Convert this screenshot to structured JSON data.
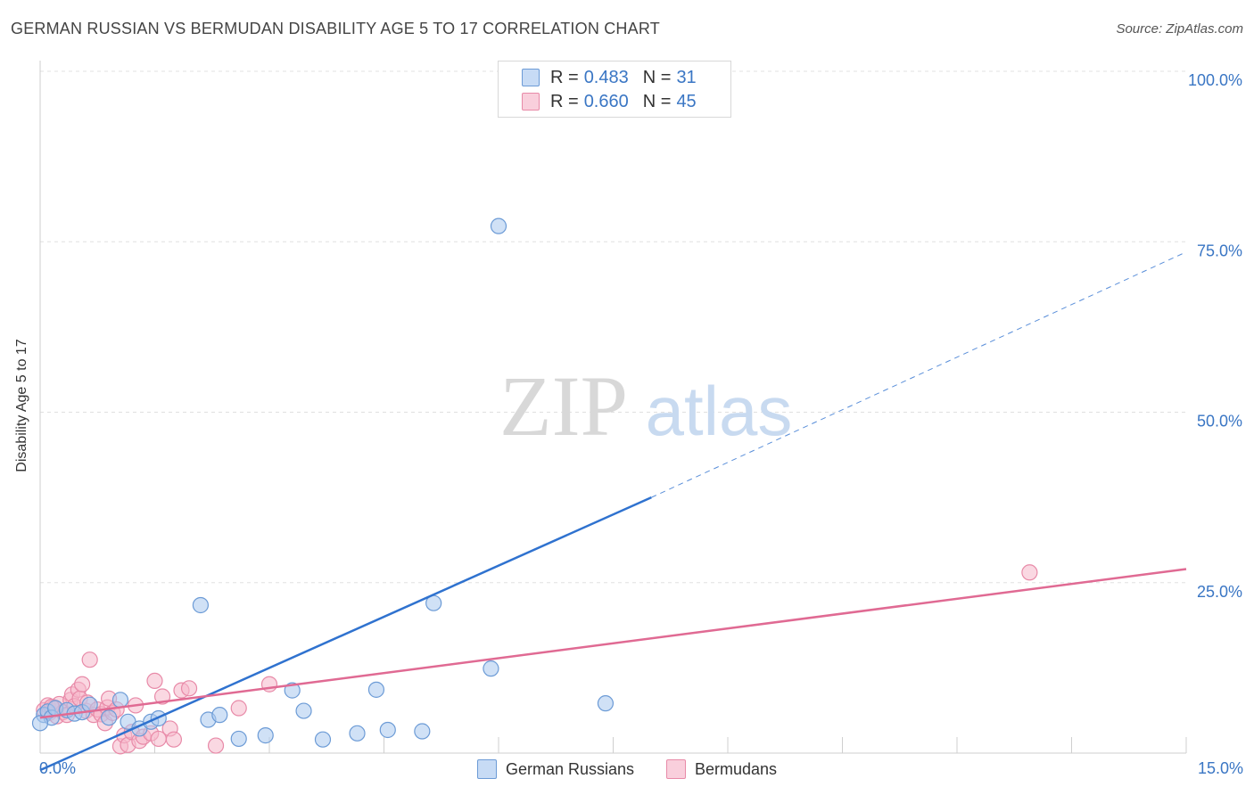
{
  "header": {
    "title": "GERMAN RUSSIAN VS BERMUDAN DISABILITY AGE 5 TO 17 CORRELATION CHART",
    "source": "Source: ZipAtlas.com"
  },
  "watermark": {
    "zip": "ZIP",
    "atlas": "atlas"
  },
  "legend_top": {
    "r_label": "R =",
    "n_label": "N =",
    "rows": [
      {
        "r": "0.483",
        "n": "31"
      },
      {
        "r": "0.660",
        "n": "45"
      }
    ]
  },
  "chart_data": {
    "type": "scatter",
    "title": "GERMAN RUSSIAN VS BERMUDAN DISABILITY AGE 5 TO 17 CORRELATION CHART",
    "xlabel": "",
    "ylabel": "Disability Age 5 to 17",
    "xlim": [
      0,
      15
    ],
    "ylim": [
      0,
      100
    ],
    "x_tick_labels": [
      "0.0%",
      "15.0%"
    ],
    "y_ticks": [
      25,
      50,
      75,
      100
    ],
    "y_tick_labels": [
      "25.0%",
      "50.0%",
      "75.0%",
      "100.0%"
    ],
    "grid": true,
    "legend_position": "bottom",
    "colors": {
      "blue_fill": "#a9c8ef",
      "blue_stroke": "#6c9bd6",
      "blue_line": "#2f72cf",
      "pink_fill": "#f6b8cb",
      "pink_stroke": "#e88aa8",
      "pink_line": "#e06a93",
      "tick_text": "#3a76c4",
      "grid": "#e0e0e0"
    },
    "series": [
      {
        "name": "German Russians",
        "r": 0.483,
        "n": 31,
        "points": [
          [
            0.05,
            5.6
          ],
          [
            0.1,
            6.1
          ],
          [
            0.15,
            5.2
          ],
          [
            0.2,
            6.6
          ],
          [
            0.35,
            6.3
          ],
          [
            0.45,
            5.8
          ],
          [
            0.55,
            6.0
          ],
          [
            0.65,
            7.1
          ],
          [
            0.9,
            5.2
          ],
          [
            1.05,
            7.8
          ],
          [
            1.15,
            4.6
          ],
          [
            1.3,
            3.6
          ],
          [
            1.45,
            4.6
          ],
          [
            1.55,
            5.1
          ],
          [
            2.1,
            21.7
          ],
          [
            2.2,
            4.9
          ],
          [
            2.35,
            5.6
          ],
          [
            2.6,
            2.1
          ],
          [
            2.95,
            2.6
          ],
          [
            3.3,
            9.2
          ],
          [
            3.45,
            6.2
          ],
          [
            3.7,
            2.0
          ],
          [
            4.15,
            2.9
          ],
          [
            4.4,
            9.3
          ],
          [
            4.55,
            3.4
          ],
          [
            5.0,
            3.2
          ],
          [
            5.15,
            22.0
          ],
          [
            5.9,
            12.4
          ],
          [
            6.0,
            77.3
          ],
          [
            7.4,
            7.3
          ],
          [
            0.0,
            4.4
          ]
        ],
        "trend": {
          "x0": 0.0,
          "y0": -2.5,
          "x1": 8.0,
          "y1": 37.5,
          "dashed_to_x": 15.0,
          "dashed_to_y": 73.5
        }
      },
      {
        "name": "Bermudans",
        "r": 0.66,
        "n": 45,
        "points": [
          [
            0.05,
            6.3
          ],
          [
            0.1,
            7.0
          ],
          [
            0.12,
            5.9
          ],
          [
            0.18,
            6.7
          ],
          [
            0.22,
            5.4
          ],
          [
            0.25,
            7.2
          ],
          [
            0.3,
            6.0
          ],
          [
            0.35,
            5.6
          ],
          [
            0.4,
            7.8
          ],
          [
            0.42,
            8.6
          ],
          [
            0.45,
            6.9
          ],
          [
            0.5,
            9.3
          ],
          [
            0.52,
            8.0
          ],
          [
            0.55,
            10.1
          ],
          [
            0.6,
            6.2
          ],
          [
            0.62,
            7.4
          ],
          [
            0.65,
            13.7
          ],
          [
            0.7,
            5.6
          ],
          [
            0.75,
            6.4
          ],
          [
            0.8,
            5.7
          ],
          [
            0.85,
            4.4
          ],
          [
            0.88,
            6.7
          ],
          [
            0.9,
            8.0
          ],
          [
            0.95,
            5.9
          ],
          [
            1.0,
            6.4
          ],
          [
            1.05,
            1.0
          ],
          [
            1.1,
            2.6
          ],
          [
            1.15,
            1.2
          ],
          [
            1.2,
            3.1
          ],
          [
            1.25,
            7.0
          ],
          [
            1.3,
            1.8
          ],
          [
            1.35,
            2.4
          ],
          [
            1.45,
            2.9
          ],
          [
            1.5,
            10.6
          ],
          [
            1.55,
            2.1
          ],
          [
            1.6,
            8.3
          ],
          [
            1.7,
            3.6
          ],
          [
            1.75,
            2.0
          ],
          [
            1.85,
            9.2
          ],
          [
            1.95,
            9.5
          ],
          [
            2.3,
            1.1
          ],
          [
            2.6,
            6.6
          ],
          [
            3.0,
            10.1
          ],
          [
            12.95,
            26.5
          ],
          [
            0.15,
            6.8
          ]
        ],
        "trend": {
          "x0": 0.0,
          "y0": 5.2,
          "x1": 15.0,
          "y1": 27.0
        }
      }
    ]
  }
}
